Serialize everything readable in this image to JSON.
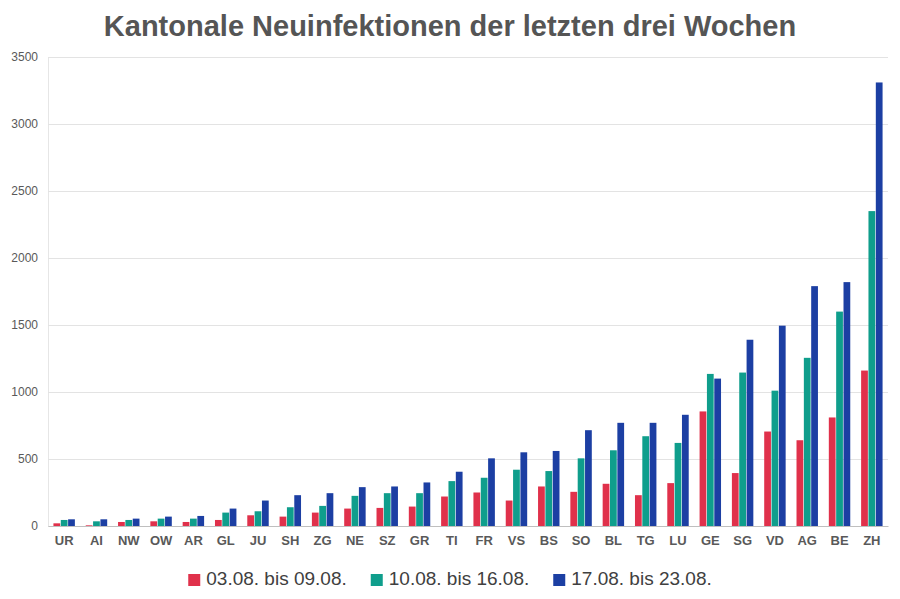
{
  "chart_data": {
    "type": "bar",
    "title": "Kantonale Neuinfektionen der letzten drei Wochen",
    "categories": [
      "UR",
      "AI",
      "NW",
      "OW",
      "AR",
      "GL",
      "JU",
      "SH",
      "ZG",
      "NE",
      "SZ",
      "GR",
      "TI",
      "FR",
      "VS",
      "BS",
      "SO",
      "BL",
      "TG",
      "LU",
      "GE",
      "SG",
      "VD",
      "AG",
      "BE",
      "ZH"
    ],
    "series": [
      {
        "name": "03.08. bis 09.08.",
        "color": "#e0314b",
        "values": [
          20,
          5,
          30,
          35,
          30,
          45,
          80,
          70,
          100,
          130,
          135,
          145,
          220,
          250,
          190,
          295,
          255,
          315,
          230,
          320,
          855,
          395,
          705,
          640,
          810,
          1160
        ]
      },
      {
        "name": "10.08. bis 16.08.",
        "color": "#0f9e8c",
        "values": [
          45,
          35,
          45,
          55,
          55,
          100,
          110,
          140,
          150,
          225,
          245,
          245,
          335,
          360,
          420,
          410,
          505,
          565,
          670,
          620,
          1135,
          1145,
          1010,
          1255,
          1600,
          2350
        ]
      },
      {
        "name": "17.08. bis 23.08.",
        "color": "#1c3fa3",
        "values": [
          50,
          50,
          55,
          70,
          75,
          130,
          190,
          230,
          245,
          290,
          295,
          325,
          405,
          505,
          550,
          560,
          715,
          770,
          770,
          830,
          1100,
          1390,
          1495,
          1790,
          1820,
          3310
        ]
      }
    ],
    "ylim": [
      0,
      3500
    ],
    "yticks": [
      0,
      500,
      1000,
      1500,
      2000,
      2500,
      3000,
      3500
    ],
    "grid": true,
    "legend": "bottom"
  }
}
